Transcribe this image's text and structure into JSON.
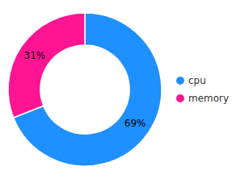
{
  "chart_data": {
    "type": "donut",
    "categories": [
      "cpu",
      "memory"
    ],
    "values": [
      69,
      31
    ],
    "value_labels": [
      "69%",
      "31%"
    ],
    "colors": [
      "#1E90FF",
      "#FF1493"
    ],
    "data_labels": true,
    "legend": "right"
  }
}
